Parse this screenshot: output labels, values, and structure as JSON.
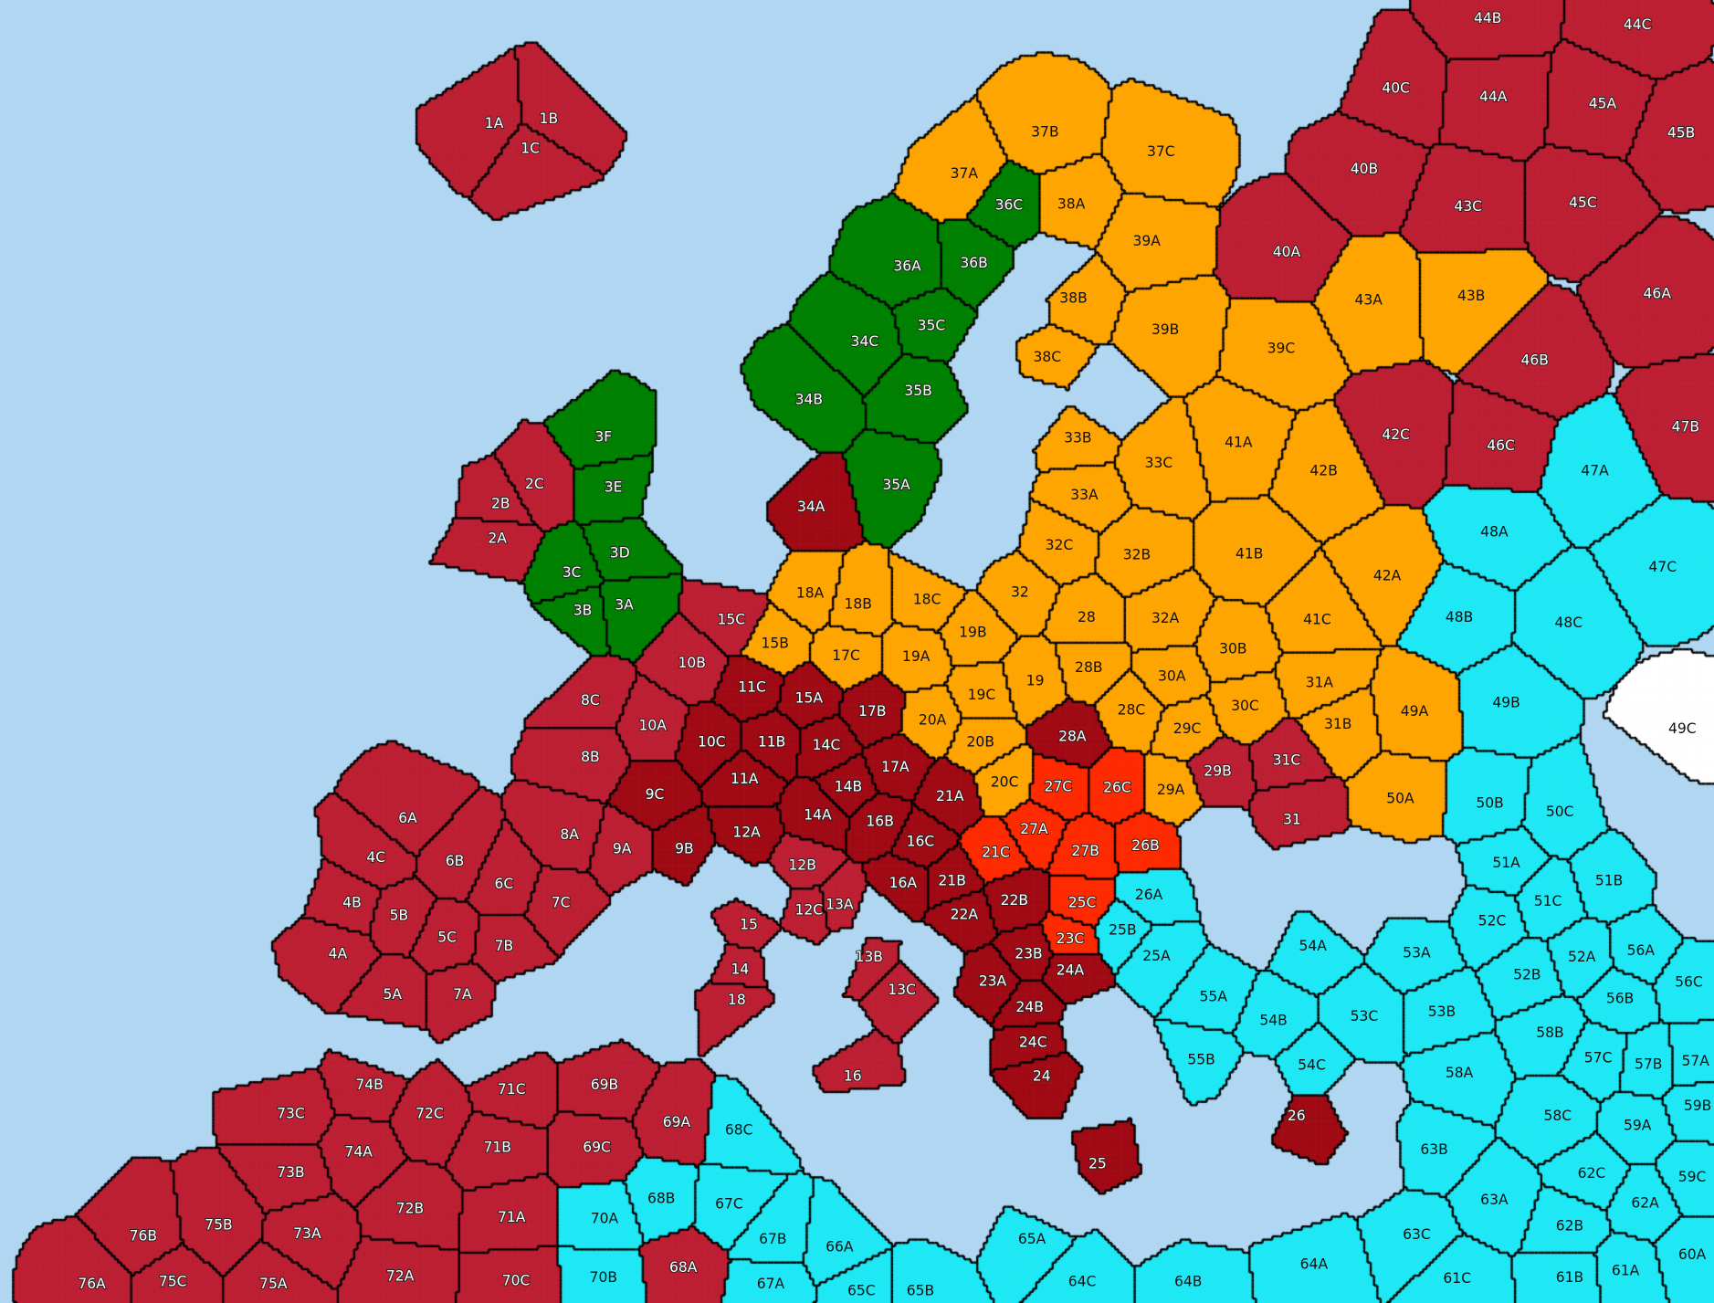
{
  "colors": {
    "sea": "#b0d6f2",
    "red": "#bd1f33",
    "darkred": "#a00a14",
    "orange": "#ffa500",
    "green": "#008000",
    "cyan": "#1fe8f5",
    "brightred": "#ff2a00",
    "white": "#ffffff"
  },
  "regions": [
    {
      "label": "1A",
      "color": "red"
    },
    {
      "label": "1B",
      "color": "red"
    },
    {
      "label": "1C",
      "color": "red"
    },
    {
      "label": "2A",
      "color": "red"
    },
    {
      "label": "2B",
      "color": "red"
    },
    {
      "label": "2C",
      "color": "red"
    },
    {
      "label": "3A",
      "color": "green"
    },
    {
      "label": "3B",
      "color": "green"
    },
    {
      "label": "3C",
      "color": "green"
    },
    {
      "label": "3D",
      "color": "green"
    },
    {
      "label": "3E",
      "color": "green"
    },
    {
      "label": "3F",
      "color": "green"
    },
    {
      "label": "4A",
      "color": "red"
    },
    {
      "label": "4B",
      "color": "red"
    },
    {
      "label": "4C",
      "color": "red"
    },
    {
      "label": "5A",
      "color": "red"
    },
    {
      "label": "5B",
      "color": "red"
    },
    {
      "label": "5C",
      "color": "red"
    },
    {
      "label": "6A",
      "color": "red"
    },
    {
      "label": "6B",
      "color": "red"
    },
    {
      "label": "6C",
      "color": "red"
    },
    {
      "label": "7A",
      "color": "red"
    },
    {
      "label": "7B",
      "color": "red"
    },
    {
      "label": "7C",
      "color": "red"
    },
    {
      "label": "8A",
      "color": "red"
    },
    {
      "label": "8B",
      "color": "red"
    },
    {
      "label": "8C",
      "color": "red"
    },
    {
      "label": "9A",
      "color": "red"
    },
    {
      "label": "9B",
      "color": "darkred"
    },
    {
      "label": "9C",
      "color": "darkred"
    },
    {
      "label": "10A",
      "color": "red"
    },
    {
      "label": "10B",
      "color": "red"
    },
    {
      "label": "10C",
      "color": "darkred"
    },
    {
      "label": "11A",
      "color": "darkred"
    },
    {
      "label": "11B",
      "color": "darkred"
    },
    {
      "label": "11C",
      "color": "darkred"
    },
    {
      "label": "12A",
      "color": "darkred"
    },
    {
      "label": "12B",
      "color": "red"
    },
    {
      "label": "12C",
      "color": "red"
    },
    {
      "label": "13A",
      "color": "red"
    },
    {
      "label": "13B",
      "color": "red"
    },
    {
      "label": "13C",
      "color": "red"
    },
    {
      "label": "14",
      "color": "red"
    },
    {
      "label": "14A",
      "color": "darkred"
    },
    {
      "label": "14B",
      "color": "darkred"
    },
    {
      "label": "14C",
      "color": "darkred"
    },
    {
      "label": "15",
      "color": "red"
    },
    {
      "label": "15A",
      "color": "darkred"
    },
    {
      "label": "15B",
      "color": "orange"
    },
    {
      "label": "15C",
      "color": "red"
    },
    {
      "label": "16",
      "color": "red"
    },
    {
      "label": "16A",
      "color": "darkred"
    },
    {
      "label": "16B",
      "color": "darkred"
    },
    {
      "label": "16C",
      "color": "darkred"
    },
    {
      "label": "17A",
      "color": "darkred"
    },
    {
      "label": "17B",
      "color": "darkred"
    },
    {
      "label": "17C",
      "color": "orange"
    },
    {
      "label": "18",
      "color": "red"
    },
    {
      "label": "18A",
      "color": "orange"
    },
    {
      "label": "18B",
      "color": "orange"
    },
    {
      "label": "18C",
      "color": "orange"
    },
    {
      "label": "19",
      "color": "orange"
    },
    {
      "label": "19A",
      "color": "orange"
    },
    {
      "label": "19B",
      "color": "orange"
    },
    {
      "label": "19C",
      "color": "orange"
    },
    {
      "label": "20A",
      "color": "orange"
    },
    {
      "label": "20B",
      "color": "orange"
    },
    {
      "label": "20C",
      "color": "orange"
    },
    {
      "label": "21A",
      "color": "darkred"
    },
    {
      "label": "21B",
      "color": "darkred"
    },
    {
      "label": "21C",
      "color": "brightred"
    },
    {
      "label": "22A",
      "color": "darkred"
    },
    {
      "label": "22B",
      "color": "darkred"
    },
    {
      "label": "23A",
      "color": "darkred"
    },
    {
      "label": "23B",
      "color": "darkred"
    },
    {
      "label": "23C",
      "color": "brightred"
    },
    {
      "label": "24",
      "color": "darkred"
    },
    {
      "label": "24A",
      "color": "darkred"
    },
    {
      "label": "24B",
      "color": "darkred"
    },
    {
      "label": "24C",
      "color": "darkred"
    },
    {
      "label": "25",
      "color": "darkred"
    },
    {
      "label": "25A",
      "color": "cyan"
    },
    {
      "label": "25B",
      "color": "cyan"
    },
    {
      "label": "25C",
      "color": "brightred"
    },
    {
      "label": "26",
      "color": "darkred"
    },
    {
      "label": "26A",
      "color": "cyan"
    },
    {
      "label": "26B",
      "color": "brightred"
    },
    {
      "label": "26C",
      "color": "brightred"
    },
    {
      "label": "27A",
      "color": "brightred"
    },
    {
      "label": "27B",
      "color": "brightred"
    },
    {
      "label": "27C",
      "color": "brightred"
    },
    {
      "label": "28",
      "color": "orange"
    },
    {
      "label": "28A",
      "color": "darkred"
    },
    {
      "label": "28B",
      "color": "orange"
    },
    {
      "label": "28C",
      "color": "orange"
    },
    {
      "label": "29A",
      "color": "orange"
    },
    {
      "label": "29B",
      "color": "red"
    },
    {
      "label": "29C",
      "color": "orange"
    },
    {
      "label": "30A",
      "color": "orange"
    },
    {
      "label": "30B",
      "color": "orange"
    },
    {
      "label": "30C",
      "color": "orange"
    },
    {
      "label": "31",
      "color": "red"
    },
    {
      "label": "31A",
      "color": "orange"
    },
    {
      "label": "31B",
      "color": "orange"
    },
    {
      "label": "31C",
      "color": "red"
    },
    {
      "label": "32",
      "color": "orange"
    },
    {
      "label": "32A",
      "color": "orange"
    },
    {
      "label": "32B",
      "color": "orange"
    },
    {
      "label": "32C",
      "color": "orange"
    },
    {
      "label": "33A",
      "color": "orange"
    },
    {
      "label": "33B",
      "color": "orange"
    },
    {
      "label": "33C",
      "color": "orange"
    },
    {
      "label": "34A",
      "color": "darkred"
    },
    {
      "label": "34B",
      "color": "green"
    },
    {
      "label": "34C",
      "color": "green"
    },
    {
      "label": "35A",
      "color": "green"
    },
    {
      "label": "35B",
      "color": "green"
    },
    {
      "label": "35C",
      "color": "green"
    },
    {
      "label": "36A",
      "color": "green"
    },
    {
      "label": "36B",
      "color": "green"
    },
    {
      "label": "36C",
      "color": "green"
    },
    {
      "label": "37A",
      "color": "orange"
    },
    {
      "label": "37B",
      "color": "orange"
    },
    {
      "label": "37C",
      "color": "orange"
    },
    {
      "label": "38A",
      "color": "orange"
    },
    {
      "label": "38B",
      "color": "orange"
    },
    {
      "label": "38C",
      "color": "orange"
    },
    {
      "label": "39A",
      "color": "orange"
    },
    {
      "label": "39B",
      "color": "orange"
    },
    {
      "label": "39C",
      "color": "orange"
    },
    {
      "label": "40A",
      "color": "red"
    },
    {
      "label": "40B",
      "color": "red"
    },
    {
      "label": "40C",
      "color": "red"
    },
    {
      "label": "41A",
      "color": "orange"
    },
    {
      "label": "41B",
      "color": "orange"
    },
    {
      "label": "41C",
      "color": "orange"
    },
    {
      "label": "42A",
      "color": "orange"
    },
    {
      "label": "42B",
      "color": "orange"
    },
    {
      "label": "42C",
      "color": "red"
    },
    {
      "label": "43A",
      "color": "orange"
    },
    {
      "label": "43B",
      "color": "orange"
    },
    {
      "label": "43C",
      "color": "red"
    },
    {
      "label": "44A",
      "color": "red"
    },
    {
      "label": "44B",
      "color": "red"
    },
    {
      "label": "44C",
      "color": "red"
    },
    {
      "label": "45A",
      "color": "red"
    },
    {
      "label": "45B",
      "color": "red"
    },
    {
      "label": "45C",
      "color": "red"
    },
    {
      "label": "46A",
      "color": "red"
    },
    {
      "label": "46B",
      "color": "red"
    },
    {
      "label": "46C",
      "color": "red"
    },
    {
      "label": "47A",
      "color": "cyan"
    },
    {
      "label": "47B",
      "color": "red"
    },
    {
      "label": "47C",
      "color": "cyan"
    },
    {
      "label": "48A",
      "color": "cyan"
    },
    {
      "label": "48B",
      "color": "cyan"
    },
    {
      "label": "48C",
      "color": "cyan"
    },
    {
      "label": "49A",
      "color": "orange"
    },
    {
      "label": "49B",
      "color": "cyan"
    },
    {
      "label": "49C",
      "color": "white"
    },
    {
      "label": "50A",
      "color": "orange"
    },
    {
      "label": "50B",
      "color": "cyan"
    },
    {
      "label": "50C",
      "color": "cyan"
    },
    {
      "label": "51A",
      "color": "cyan"
    },
    {
      "label": "51B",
      "color": "cyan"
    },
    {
      "label": "51C",
      "color": "cyan"
    },
    {
      "label": "52A",
      "color": "cyan"
    },
    {
      "label": "52B",
      "color": "cyan"
    },
    {
      "label": "52C",
      "color": "cyan"
    },
    {
      "label": "53A",
      "color": "cyan"
    },
    {
      "label": "53B",
      "color": "cyan"
    },
    {
      "label": "53C",
      "color": "cyan"
    },
    {
      "label": "54A",
      "color": "cyan"
    },
    {
      "label": "54B",
      "color": "cyan"
    },
    {
      "label": "54C",
      "color": "cyan"
    },
    {
      "label": "55A",
      "color": "cyan"
    },
    {
      "label": "55B",
      "color": "cyan"
    },
    {
      "label": "56A",
      "color": "cyan"
    },
    {
      "label": "56B",
      "color": "cyan"
    },
    {
      "label": "56C",
      "color": "cyan"
    },
    {
      "label": "57A",
      "color": "cyan"
    },
    {
      "label": "57B",
      "color": "cyan"
    },
    {
      "label": "57C",
      "color": "cyan"
    },
    {
      "label": "58A",
      "color": "cyan"
    },
    {
      "label": "58B",
      "color": "cyan"
    },
    {
      "label": "58C",
      "color": "cyan"
    },
    {
      "label": "59A",
      "color": "cyan"
    },
    {
      "label": "59B",
      "color": "cyan"
    },
    {
      "label": "59C",
      "color": "cyan"
    },
    {
      "label": "60A",
      "color": "cyan"
    },
    {
      "label": "61A",
      "color": "cyan"
    },
    {
      "label": "61B",
      "color": "cyan"
    },
    {
      "label": "61C",
      "color": "cyan"
    },
    {
      "label": "62A",
      "color": "cyan"
    },
    {
      "label": "62B",
      "color": "cyan"
    },
    {
      "label": "62C",
      "color": "cyan"
    },
    {
      "label": "63A",
      "color": "cyan"
    },
    {
      "label": "63B",
      "color": "cyan"
    },
    {
      "label": "63C",
      "color": "cyan"
    },
    {
      "label": "64A",
      "color": "cyan"
    },
    {
      "label": "64B",
      "color": "cyan"
    },
    {
      "label": "64C",
      "color": "cyan"
    },
    {
      "label": "65A",
      "color": "cyan"
    },
    {
      "label": "65B",
      "color": "cyan"
    },
    {
      "label": "65C",
      "color": "cyan"
    },
    {
      "label": "66A",
      "color": "cyan"
    },
    {
      "label": "67A",
      "color": "cyan"
    },
    {
      "label": "67B",
      "color": "cyan"
    },
    {
      "label": "67C",
      "color": "cyan"
    },
    {
      "label": "68A",
      "color": "red"
    },
    {
      "label": "68B",
      "color": "cyan"
    },
    {
      "label": "68C",
      "color": "cyan"
    },
    {
      "label": "69A",
      "color": "red"
    },
    {
      "label": "69B",
      "color": "red"
    },
    {
      "label": "69C",
      "color": "red"
    },
    {
      "label": "70A",
      "color": "cyan"
    },
    {
      "label": "70B",
      "color": "cyan"
    },
    {
      "label": "70C",
      "color": "red"
    },
    {
      "label": "71A",
      "color": "red"
    },
    {
      "label": "71B",
      "color": "red"
    },
    {
      "label": "71C",
      "color": "red"
    },
    {
      "label": "72A",
      "color": "red"
    },
    {
      "label": "72B",
      "color": "red"
    },
    {
      "label": "72C",
      "color": "red"
    },
    {
      "label": "73A",
      "color": "red"
    },
    {
      "label": "73B",
      "color": "red"
    },
    {
      "label": "73C",
      "color": "red"
    },
    {
      "label": "74A",
      "color": "red"
    },
    {
      "label": "74B",
      "color": "red"
    },
    {
      "label": "75A",
      "color": "red"
    },
    {
      "label": "75B",
      "color": "red"
    },
    {
      "label": "75C",
      "color": "red"
    },
    {
      "label": "76A",
      "color": "red"
    },
    {
      "label": "76B",
      "color": "red"
    }
  ]
}
